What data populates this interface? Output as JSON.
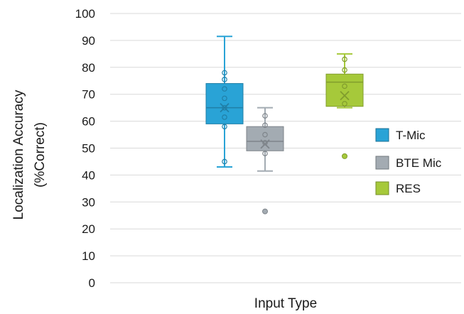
{
  "chart_data": {
    "type": "boxplot",
    "title": "",
    "xlabel": "Input Type",
    "ylabel_line1": "Localization Accuracy",
    "ylabel_line2": "(%Correct)",
    "ylim": [
      0,
      100
    ],
    "yticks": [
      0,
      10,
      20,
      30,
      40,
      50,
      60,
      70,
      80,
      90,
      100
    ],
    "grid": true,
    "legend_position": "right",
    "series": [
      {
        "name": "T-Mic",
        "color": "#29a3d6",
        "whisker_low": 43,
        "q1": 59,
        "median": 65,
        "q3": 74,
        "whisker_high": 91.5,
        "mean": 65,
        "points": [
          45,
          58,
          61.5,
          65,
          68.5,
          72,
          75.5,
          78
        ],
        "outliers": []
      },
      {
        "name": "BTE Mic",
        "color": "#a3abb2",
        "whisker_low": 41.5,
        "q1": 49,
        "median": 52.5,
        "q3": 58,
        "whisker_high": 65,
        "mean": 51.5,
        "points": [
          48,
          52,
          55,
          58.5,
          62
        ],
        "outliers": [
          26.5
        ]
      },
      {
        "name": "RES",
        "color": "#a6c93a",
        "whisker_low": 65,
        "q1": 65.5,
        "median": 74.5,
        "q3": 77.5,
        "whisker_high": 85,
        "mean": 69.5,
        "points": [
          66.5,
          73,
          79,
          83
        ],
        "outliers": [
          47
        ]
      }
    ]
  }
}
